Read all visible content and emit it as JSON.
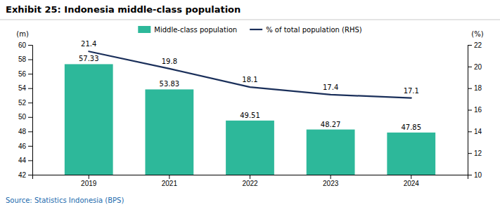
{
  "chart_data": {
    "type": "bar",
    "title": "Exhibit 25: Indonesia middle-class population",
    "source": "Source: Statistics Indonesia (BPS)",
    "ylabel": "(m)",
    "y2label": "(%)",
    "categories": [
      "2019",
      "2021",
      "2022",
      "2023",
      "2024"
    ],
    "series": [
      {
        "name": "Middle-class population",
        "type": "bar",
        "color": "#2db89a",
        "values": [
          57.33,
          53.83,
          49.51,
          48.27,
          47.85
        ]
      },
      {
        "name": "% of total population (RHS)",
        "type": "line",
        "color": "#1a2f5a",
        "axis": "y2",
        "values": [
          21.4,
          19.8,
          18.1,
          17.4,
          17.1
        ]
      }
    ],
    "ylim": [
      42,
      60
    ],
    "yticks": [
      42,
      44,
      46,
      48,
      50,
      52,
      54,
      56,
      58,
      60
    ],
    "y2lim": [
      10,
      22
    ],
    "y2ticks": [
      10,
      12,
      14,
      16,
      18,
      20,
      22
    ],
    "data_labels": true,
    "legend": "top",
    "grid": false
  }
}
